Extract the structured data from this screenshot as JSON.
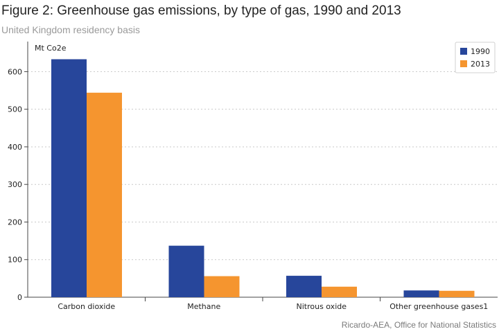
{
  "header": {
    "title": "Figure 2: Greenhouse gas emissions, by type of gas, 1990 and 2013",
    "subtitle": "United Kingdom residency basis"
  },
  "footer": {
    "source": "Ricardo-AEA, Office for National Statistics"
  },
  "chart_data": {
    "type": "bar",
    "title": "Figure 2: Greenhouse gas emissions, by type of gas, 1990 and 2013",
    "subtitle": "United Kingdom residency basis",
    "xlabel": "",
    "ylabel": "Mt Co2e",
    "ylim": [
      0,
      680
    ],
    "yticks": [
      0,
      100,
      200,
      300,
      400,
      500,
      600
    ],
    "grid": true,
    "legend_position": "top-right",
    "categories": [
      "Carbon dioxide",
      "Methane",
      "Nitrous oxide",
      "Other greenhouse gases1"
    ],
    "series": [
      {
        "name": "1990",
        "color": "#27469b",
        "values": [
          633,
          137,
          57,
          18
        ]
      },
      {
        "name": "2013",
        "color": "#f5952f",
        "values": [
          544,
          56,
          28,
          17
        ]
      }
    ]
  }
}
